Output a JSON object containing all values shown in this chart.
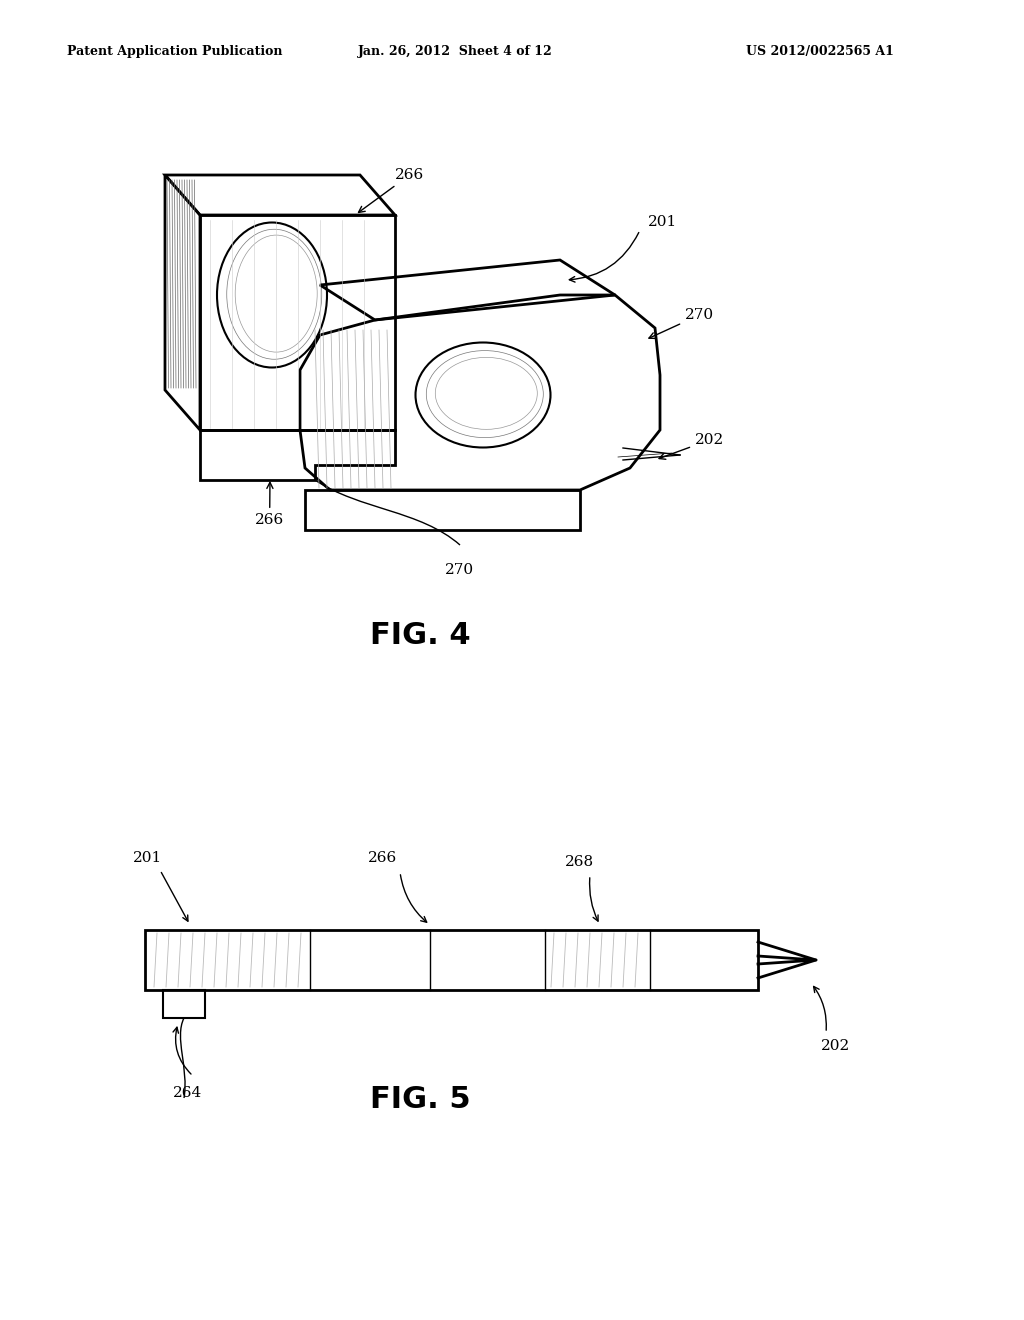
{
  "bg_color": "#ffffff",
  "header_left": "Patent Application Publication",
  "header_mid": "Jan. 26, 2012  Sheet 4 of 12",
  "header_right": "US 2012/0022565 A1",
  "fig4_label": "FIG. 4",
  "fig5_label": "FIG. 5"
}
